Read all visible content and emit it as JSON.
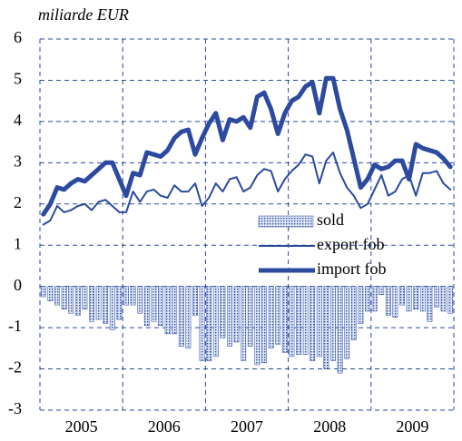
{
  "chart_data": {
    "type": "line",
    "title": "miliarde EUR",
    "categories": [
      null,
      null,
      null,
      null,
      null,
      null,
      "2005",
      null,
      null,
      null,
      null,
      null,
      null,
      null,
      null,
      null,
      null,
      null,
      "2006",
      null,
      null,
      null,
      null,
      null,
      null,
      null,
      null,
      null,
      null,
      null,
      "2007",
      null,
      null,
      null,
      null,
      null,
      null,
      null,
      null,
      null,
      null,
      null,
      "2008",
      null,
      null,
      null,
      null,
      null,
      null,
      null,
      null,
      null,
      null,
      null,
      "2009",
      null,
      null,
      null,
      null,
      null
    ],
    "ylim": [
      -3,
      6
    ],
    "yticks": [
      -3,
      -2,
      -1,
      0,
      1,
      2,
      3,
      4,
      5,
      6
    ],
    "grid": true,
    "legend": "center",
    "series": [
      {
        "name": "sold",
        "type": "bar",
        "color": "#2b4aa0",
        "values": [
          -0.25,
          -0.35,
          -0.45,
          -0.55,
          -0.65,
          -0.7,
          -0.55,
          -0.85,
          -0.8,
          -0.9,
          -1.05,
          -0.8,
          -0.45,
          -0.45,
          -0.65,
          -0.95,
          -0.85,
          -0.95,
          -1.15,
          -1.15,
          -1.45,
          -1.5,
          -0.7,
          -1.8,
          -1.8,
          -1.7,
          -1.25,
          -1.45,
          -1.35,
          -1.8,
          -1.45,
          -1.9,
          -1.85,
          -1.5,
          -1.4,
          -1.6,
          -1.7,
          -1.65,
          -1.65,
          -1.8,
          -1.7,
          -2.0,
          -1.8,
          -2.1,
          -1.75,
          -1.3,
          -0.9,
          -0.6,
          -0.6,
          -0.2,
          -0.7,
          -0.75,
          -0.45,
          -0.6,
          -0.55,
          -0.6,
          -0.85,
          -0.5,
          -0.6,
          -0.65
        ]
      },
      {
        "name": "export fob",
        "type": "line",
        "color": "#2b4aa0",
        "width": 2,
        "values": [
          1.5,
          1.6,
          1.95,
          1.8,
          1.85,
          1.95,
          2.0,
          1.85,
          2.05,
          2.1,
          1.95,
          1.8,
          1.8,
          2.3,
          2.05,
          2.3,
          2.35,
          2.2,
          2.15,
          2.45,
          2.3,
          2.3,
          2.5,
          1.95,
          2.15,
          2.5,
          2.3,
          2.6,
          2.65,
          2.3,
          2.4,
          2.7,
          2.85,
          2.8,
          2.3,
          2.6,
          2.8,
          2.95,
          3.2,
          3.15,
          2.5,
          3.05,
          3.25,
          2.75,
          2.4,
          2.2,
          1.9,
          2.0,
          2.35,
          2.7,
          2.2,
          2.3,
          2.6,
          2.7,
          2.2,
          2.75,
          2.75,
          2.8,
          2.5,
          2.35
        ]
      },
      {
        "name": "import fob",
        "type": "line",
        "color": "#2b4aa0",
        "width": 5,
        "values": [
          1.75,
          2.0,
          2.4,
          2.35,
          2.5,
          2.6,
          2.55,
          2.7,
          2.85,
          3.0,
          3.0,
          2.6,
          2.2,
          2.75,
          2.7,
          3.25,
          3.2,
          3.15,
          3.3,
          3.6,
          3.75,
          3.8,
          3.2,
          3.6,
          3.95,
          4.2,
          3.55,
          4.05,
          4.0,
          4.1,
          3.85,
          4.6,
          4.7,
          4.3,
          3.7,
          4.2,
          4.5,
          4.6,
          4.85,
          4.95,
          4.2,
          5.05,
          5.05,
          4.3,
          3.8,
          3.1,
          2.4,
          2.6,
          2.95,
          2.85,
          2.9,
          3.05,
          3.05,
          2.6,
          3.45,
          3.35,
          3.3,
          3.25,
          3.1,
          2.9
        ]
      }
    ]
  }
}
